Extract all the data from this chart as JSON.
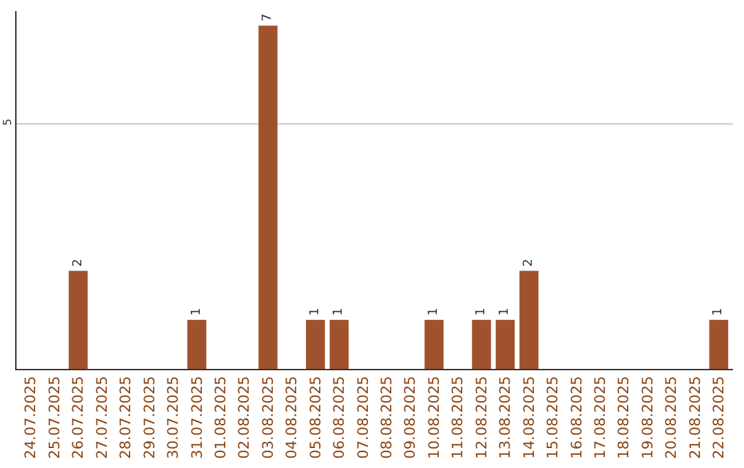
{
  "chart_data": {
    "type": "bar",
    "categories": [
      "24.07.2025",
      "25.07.2025",
      "26.07.2025",
      "27.07.2025",
      "28.07.2025",
      "29.07.2025",
      "30.07.2025",
      "31.07.2025",
      "01.08.2025",
      "02.08.2025",
      "03.08.2025",
      "04.08.2025",
      "05.08.2025",
      "06.08.2025",
      "07.08.2025",
      "08.08.2025",
      "09.08.2025",
      "10.08.2025",
      "11.08.2025",
      "12.08.2025",
      "13.08.2025",
      "14.08.2025",
      "15.08.2025",
      "16.08.2025",
      "17.08.2025",
      "18.08.2025",
      "19.08.2025",
      "20.08.2025",
      "21.08.2025",
      "22.08.2025"
    ],
    "values": [
      0,
      0,
      2,
      0,
      0,
      0,
      0,
      1,
      0,
      0,
      7,
      0,
      1,
      1,
      0,
      0,
      0,
      1,
      0,
      1,
      1,
      2,
      0,
      0,
      0,
      0,
      0,
      0,
      0,
      1
    ],
    "value_labels": [
      null,
      null,
      "2",
      null,
      null,
      null,
      null,
      "1",
      null,
      null,
      "7",
      null,
      "1",
      "1",
      null,
      null,
      null,
      "1",
      null,
      "1",
      "1",
      "2",
      null,
      null,
      null,
      null,
      null,
      null,
      null,
      "1"
    ],
    "color": "#a0522d",
    "ylim": [
      0,
      7.3
    ],
    "yticks": [
      5
    ],
    "grid": "y",
    "legend": false
  }
}
